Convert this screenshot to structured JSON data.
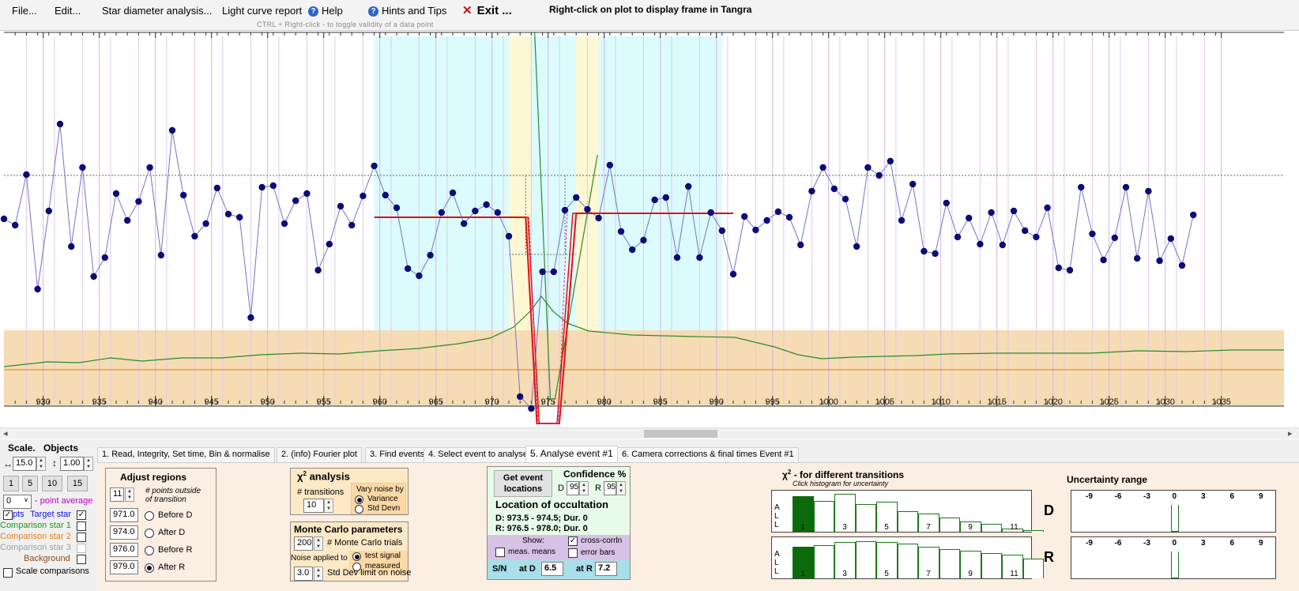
{
  "menu": {
    "file": "File...",
    "edit": "Edit...",
    "star_diameter": "Star diameter analysis...",
    "light_curve_report": "Light curve report",
    "help": "Help",
    "hints": "Hints and Tips",
    "exit": "Exit ...",
    "exit_x": "✕",
    "help_icon": "?"
  },
  "hint_right_click": "Right-click on plot to display frame in Tangra",
  "hint_ctrl": "CTRL + Right-click  -  to toggle validity of a data point",
  "plot": {
    "x_ticks": [
      930,
      935,
      940,
      945,
      950,
      955,
      960,
      965,
      970,
      975,
      980,
      985,
      990,
      995,
      1000,
      1005,
      1010,
      1015,
      1020,
      1025,
      1030,
      1035
    ],
    "colors": {
      "target": "#0b0b7a",
      "line": "#7474c6",
      "model": "#e01010",
      "comparison": "#2a8a2a",
      "background_band": "#f5dcb4",
      "cyan": "#dcfbfd",
      "yellow": "#fdf7d4"
    }
  },
  "chart_data": {
    "type": "scatter",
    "x_range": [
      926.5,
      1036
    ],
    "target_star": [
      [
        926.5,
        238
      ],
      [
        927.5,
        246
      ],
      [
        928.5,
        182
      ],
      [
        929.5,
        327
      ],
      [
        930.5,
        228
      ],
      [
        931.5,
        118
      ],
      [
        932.5,
        273
      ],
      [
        933.5,
        173
      ],
      [
        934.5,
        311
      ],
      [
        935.5,
        287
      ],
      [
        936.5,
        206
      ],
      [
        937.5,
        240
      ],
      [
        938.5,
        216
      ],
      [
        939.5,
        173
      ],
      [
        940.5,
        284
      ],
      [
        941.5,
        126
      ],
      [
        942.5,
        208
      ],
      [
        943.5,
        260
      ],
      [
        944.5,
        244
      ],
      [
        945.5,
        199
      ],
      [
        946.5,
        232
      ],
      [
        947.5,
        236
      ],
      [
        948.5,
        363
      ],
      [
        949.5,
        198
      ],
      [
        950.5,
        196
      ],
      [
        951.5,
        244
      ],
      [
        952.5,
        215
      ],
      [
        953.5,
        206
      ],
      [
        954.5,
        303
      ],
      [
        955.5,
        270
      ],
      [
        956.5,
        222
      ],
      [
        957.5,
        246
      ],
      [
        958.5,
        209
      ],
      [
        959.5,
        171
      ],
      [
        960.5,
        208
      ],
      [
        961.5,
        224
      ],
      [
        962.5,
        301
      ],
      [
        963.5,
        310
      ],
      [
        964.5,
        284
      ],
      [
        965.5,
        230
      ],
      [
        966.5,
        205
      ],
      [
        967.5,
        244
      ],
      [
        968.5,
        228
      ],
      [
        969.5,
        220
      ],
      [
        970.5,
        230
      ],
      [
        971.5,
        260
      ],
      [
        972.5,
        463
      ],
      [
        973.5,
        478
      ],
      [
        974.5,
        305
      ],
      [
        975.5,
        305
      ],
      [
        976.5,
        227
      ],
      [
        977.5,
        211
      ],
      [
        978.5,
        226
      ],
      [
        979.5,
        237
      ],
      [
        980.5,
        170
      ],
      [
        981.5,
        254
      ],
      [
        982.5,
        277
      ],
      [
        983.5,
        265
      ],
      [
        984.5,
        214
      ],
      [
        985.5,
        211
      ],
      [
        986.5,
        287
      ],
      [
        987.5,
        197
      ],
      [
        988.5,
        287
      ],
      [
        989.5,
        230
      ],
      [
        990.5,
        253
      ],
      [
        991.5,
        308
      ],
      [
        992.5,
        235
      ],
      [
        993.5,
        252
      ],
      [
        994.5,
        240
      ],
      [
        995.5,
        229
      ],
      [
        996.5,
        236
      ],
      [
        997.5,
        271
      ],
      [
        998.5,
        203
      ],
      [
        999.5,
        173
      ],
      [
        1000.5,
        200
      ],
      [
        1001.5,
        213
      ],
      [
        1002.5,
        273
      ],
      [
        1003.5,
        173
      ],
      [
        1004.5,
        183
      ],
      [
        1005.5,
        165
      ],
      [
        1006.5,
        240
      ],
      [
        1007.5,
        194
      ],
      [
        1008.5,
        279
      ],
      [
        1009.5,
        282
      ],
      [
        1010.5,
        218
      ],
      [
        1011.5,
        261
      ],
      [
        1012.5,
        237
      ],
      [
        1013.5,
        270
      ],
      [
        1014.5,
        230
      ],
      [
        1015.5,
        271
      ],
      [
        1016.5,
        228
      ],
      [
        1017.5,
        253
      ],
      [
        1018.5,
        261
      ],
      [
        1019.5,
        224
      ],
      [
        1020.5,
        300
      ],
      [
        1021.5,
        303
      ],
      [
        1022.5,
        198
      ],
      [
        1023.5,
        257
      ],
      [
        1024.5,
        290
      ],
      [
        1025.5,
        262
      ],
      [
        1026.5,
        198
      ],
      [
        1027.5,
        288
      ],
      [
        1028.5,
        203
      ],
      [
        1029.5,
        291
      ],
      [
        1030.5,
        263
      ],
      [
        1031.5,
        297
      ],
      [
        1032.5,
        233
      ]
    ],
    "model_baseline": 236,
    "model_bottom": 497,
    "event_d": [
      973.5,
      974.5
    ],
    "event_r": [
      976.5,
      978.0
    ]
  },
  "left": {
    "scale_title": "Scale.",
    "objects_title": "Objects",
    "hscale": "15.0",
    "vscale": "1.00",
    "zoom_buttons": [
      "1",
      "5",
      "10",
      "15"
    ],
    "point_average_value": "0",
    "point_average_label": "point average",
    "pts_label": "pts",
    "target_star": "Target star",
    "comparison1": "Comparison star 1",
    "comparison2": "Comparison star 2",
    "comparison3": "Comparison star 3",
    "background": "Background",
    "scale_comparisons": "Scale comparisons",
    "colors": {
      "target": "#1010e0",
      "comp1": "#1a9a1a",
      "comp2": "#e08020",
      "comp3": "#a0a0a0",
      "background": "#8a4a1a"
    }
  },
  "tabs": [
    "1.  Read, Integrity, Set time, Bin & normalise",
    "2. (info)  Fourier plot",
    "3. Find events",
    "4. Select event to analyse",
    "5. Analyse event #1",
    "6. Camera corrections & final times Event #1"
  ],
  "adjust": {
    "title": "Adjust regions",
    "points_value": "11",
    "points_label_1": "# points outside",
    "points_label_2": "of transition",
    "rows": [
      {
        "value": "971.0",
        "label": "Before D"
      },
      {
        "value": "974.0",
        "label": "After D"
      },
      {
        "value": "976.0",
        "label": "Before R"
      },
      {
        "value": "979.0",
        "label": "After R"
      }
    ]
  },
  "chi": {
    "title": "analysis",
    "chi_symbol": "χ",
    "sup": "2",
    "transitions_label": "# transitions",
    "transitions_value": "10",
    "vary_label_1": "Vary noise by",
    "opt_variance": "Variance",
    "opt_stddev": "Std Devn"
  },
  "monte": {
    "title": "Monte Carlo parameters",
    "trials_value": "200",
    "trials_label": "# Monte Carlo trials",
    "noise_applied": "Noise applied to",
    "opt_test": "test signal",
    "opt_measured": "measured",
    "std_value": "3.0",
    "std_label": "Std Dev limit on noise"
  },
  "event": {
    "get_locations_1": "Get event",
    "get_locations_2": "locations",
    "confidence_title": "Confidence %",
    "d_label": "D",
    "d_value": "95",
    "r_label": "R",
    "r_value": "95",
    "location_title": "Location of occultation",
    "d_line": "D: 973.5 - 974.5; Dur. 0",
    "r_line": "R: 976.5 - 978.0; Dur. 0",
    "show_label": "Show:",
    "meas_means": "meas. means",
    "cross_corrln": "cross-corrln",
    "error_bars": "error bars",
    "sn_label": "S/N",
    "at_d": "at D",
    "at_d_value": "6.5",
    "at_r": "at R",
    "at_r_value": "7.2"
  },
  "histo": {
    "title_chi": "χ",
    "title_sup": "2",
    "title_rest": "- for different transitions",
    "subtitle": "Click histogram for uncertainty",
    "all": [
      "A",
      "L",
      "L"
    ],
    "d_label": "D",
    "r_label": "R",
    "labels": [
      "1",
      "3",
      "5",
      "7",
      "9",
      "11"
    ],
    "d_values": [
      0.9,
      0.78,
      0.96,
      0.7,
      0.76,
      0.52,
      0.46,
      0.36,
      0.27,
      0.2,
      0.08,
      0.05
    ],
    "r_values": [
      0.8,
      0.85,
      0.93,
      0.95,
      0.93,
      0.88,
      0.8,
      0.74,
      0.7,
      0.65,
      0.6,
      0.5
    ]
  },
  "uncertainty": {
    "title": "Uncertainty range",
    "ticks": [
      "-9",
      "-6",
      "-3",
      "0",
      "3",
      "6",
      "9"
    ]
  }
}
